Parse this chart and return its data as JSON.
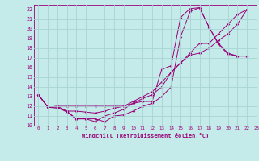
{
  "xlabel": "Windchill (Refroidissement éolien,°C)",
  "xlim": [
    -0.5,
    23
  ],
  "ylim": [
    10,
    22.5
  ],
  "xticks": [
    0,
    1,
    2,
    3,
    4,
    5,
    6,
    7,
    8,
    9,
    10,
    11,
    12,
    13,
    14,
    15,
    16,
    17,
    18,
    19,
    20,
    21,
    22,
    23
  ],
  "yticks": [
    10,
    11,
    12,
    13,
    14,
    15,
    16,
    17,
    18,
    19,
    20,
    21,
    22
  ],
  "bg_color": "#c5eaea",
  "line_color": "#990077",
  "grid_color": "#a8d4d4",
  "lines": [
    [
      0,
      13.2,
      1,
      11.9,
      2,
      11.9,
      3,
      11.4,
      4,
      10.7,
      5,
      10.7,
      6,
      10.7,
      7,
      10.4,
      8,
      11.0,
      9,
      11.1,
      10,
      11.5,
      11,
      12.0,
      12,
      12.3,
      13,
      13.0,
      14,
      14.0,
      15,
      19.2,
      16,
      21.8,
      17,
      22.2,
      18,
      20.2,
      19,
      18.5,
      20,
      17.5,
      21,
      17.2,
      22,
      17.2
    ],
    [
      0,
      13.2,
      1,
      11.9,
      2,
      11.8,
      3,
      11.5,
      4,
      10.7,
      5,
      10.7,
      6,
      10.4,
      7,
      11.0,
      8,
      11.3,
      9,
      11.7,
      10,
      12.3,
      11,
      12.5,
      12,
      12.5,
      13,
      15.8,
      14,
      16.2,
      15,
      21.2,
      16,
      22.1,
      17,
      22.2,
      18,
      20.2,
      19,
      18.4,
      20,
      17.4,
      21,
      17.2,
      22,
      17.2
    ],
    [
      0,
      13.2,
      1,
      11.9,
      2,
      12.0,
      3,
      12.0,
      4,
      12.0,
      5,
      12.0,
      6,
      12.0,
      7,
      12.0,
      8,
      12.0,
      9,
      12.0,
      10,
      12.5,
      11,
      13.0,
      12,
      13.5,
      13,
      14.5,
      14,
      15.5,
      15,
      16.5,
      16,
      17.5,
      17,
      18.5,
      18,
      18.5,
      19,
      19.5,
      20,
      20.5,
      21,
      21.5,
      22,
      22.0
    ],
    [
      0,
      13.2,
      1,
      11.9,
      2,
      12.0,
      3,
      11.5,
      4,
      11.5,
      5,
      11.4,
      6,
      11.3,
      7,
      11.5,
      8,
      11.8,
      9,
      12.0,
      10,
      12.3,
      11,
      12.8,
      12,
      13.2,
      13,
      14.0,
      14,
      15.5,
      15,
      16.5,
      16,
      17.3,
      17,
      17.5,
      18,
      18.0,
      19,
      18.8,
      20,
      19.5,
      21,
      20.5,
      22,
      22.0
    ]
  ]
}
